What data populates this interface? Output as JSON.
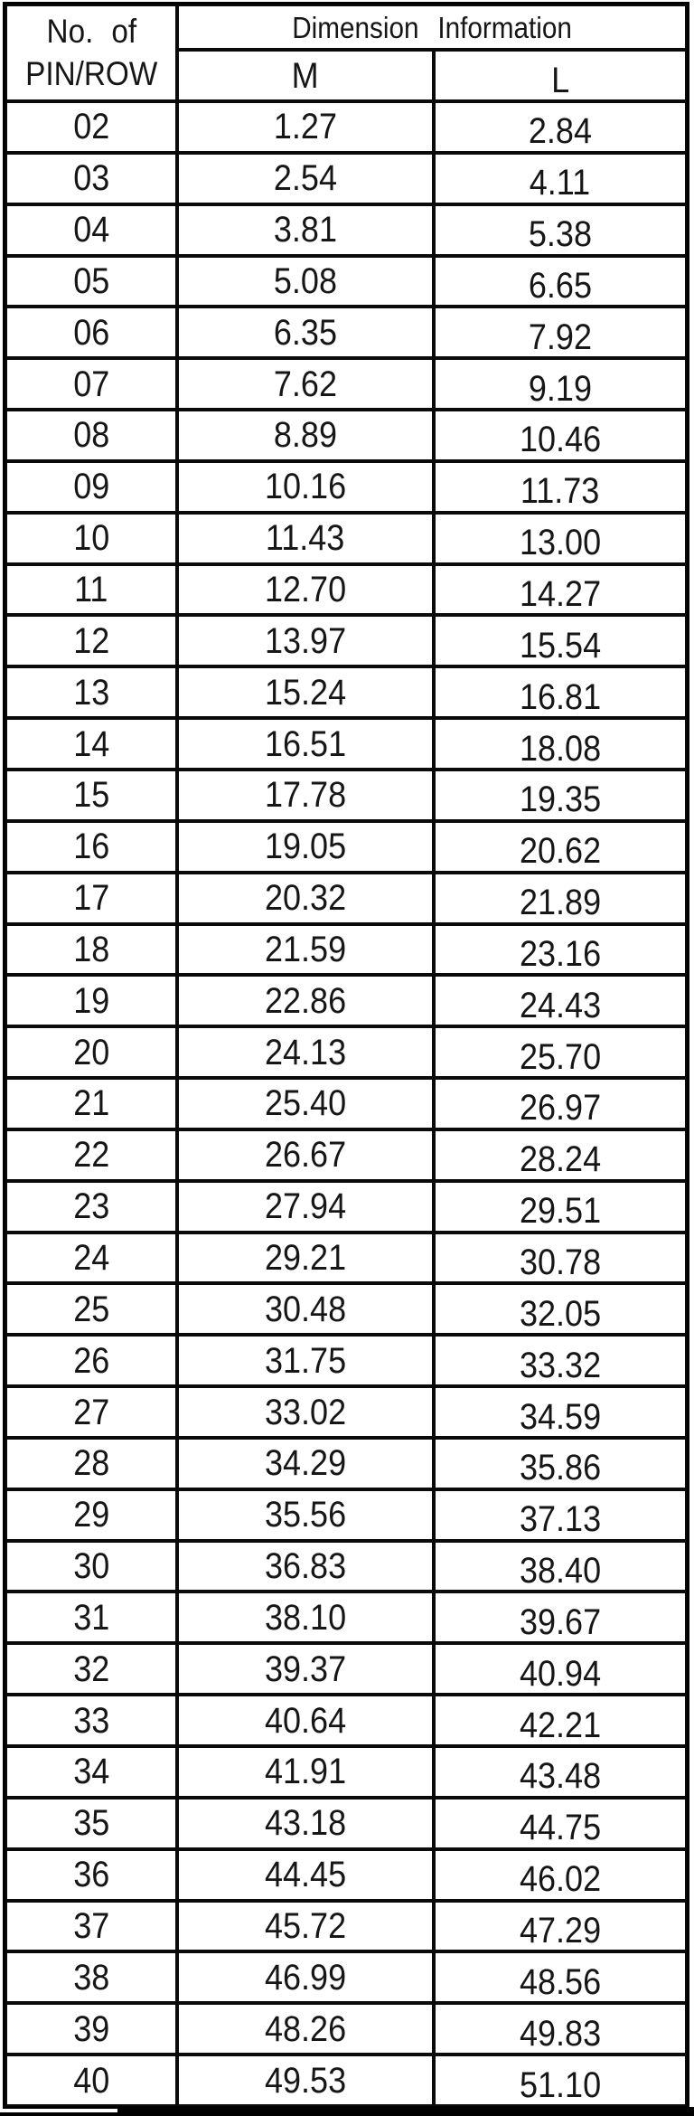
{
  "table": {
    "header": {
      "col1_line1": "No. of",
      "col1_line2": "PIN/ROW",
      "span_title": "Dimension Information",
      "col_m": "M",
      "col_l": "L"
    },
    "rows": [
      {
        "pins": "02",
        "m": "1.27",
        "l": "2.84"
      },
      {
        "pins": "03",
        "m": "2.54",
        "l": "4.11"
      },
      {
        "pins": "04",
        "m": "3.81",
        "l": "5.38"
      },
      {
        "pins": "05",
        "m": "5.08",
        "l": "6.65"
      },
      {
        "pins": "06",
        "m": "6.35",
        "l": "7.92"
      },
      {
        "pins": "07",
        "m": "7.62",
        "l": "9.19"
      },
      {
        "pins": "08",
        "m": "8.89",
        "l": "10.46"
      },
      {
        "pins": "09",
        "m": "10.16",
        "l": "11.73"
      },
      {
        "pins": "10",
        "m": "11.43",
        "l": "13.00"
      },
      {
        "pins": "11",
        "m": "12.70",
        "l": "14.27"
      },
      {
        "pins": "12",
        "m": "13.97",
        "l": "15.54"
      },
      {
        "pins": "13",
        "m": "15.24",
        "l": "16.81"
      },
      {
        "pins": "14",
        "m": "16.51",
        "l": "18.08"
      },
      {
        "pins": "15",
        "m": "17.78",
        "l": "19.35"
      },
      {
        "pins": "16",
        "m": "19.05",
        "l": "20.62"
      },
      {
        "pins": "17",
        "m": "20.32",
        "l": "21.89"
      },
      {
        "pins": "18",
        "m": "21.59",
        "l": "23.16"
      },
      {
        "pins": "19",
        "m": "22.86",
        "l": "24.43"
      },
      {
        "pins": "20",
        "m": "24.13",
        "l": "25.70"
      },
      {
        "pins": "21",
        "m": "25.40",
        "l": "26.97"
      },
      {
        "pins": "22",
        "m": "26.67",
        "l": "28.24"
      },
      {
        "pins": "23",
        "m": "27.94",
        "l": "29.51"
      },
      {
        "pins": "24",
        "m": "29.21",
        "l": "30.78"
      },
      {
        "pins": "25",
        "m": "30.48",
        "l": "32.05"
      },
      {
        "pins": "26",
        "m": "31.75",
        "l": "33.32"
      },
      {
        "pins": "27",
        "m": "33.02",
        "l": "34.59"
      },
      {
        "pins": "28",
        "m": "34.29",
        "l": "35.86"
      },
      {
        "pins": "29",
        "m": "35.56",
        "l": "37.13"
      },
      {
        "pins": "30",
        "m": "36.83",
        "l": "38.40"
      },
      {
        "pins": "31",
        "m": "38.10",
        "l": "39.67"
      },
      {
        "pins": "32",
        "m": "39.37",
        "l": "40.94"
      },
      {
        "pins": "33",
        "m": "40.64",
        "l": "42.21"
      },
      {
        "pins": "34",
        "m": "41.91",
        "l": "43.48"
      },
      {
        "pins": "35",
        "m": "43.18",
        "l": "44.75"
      },
      {
        "pins": "36",
        "m": "44.45",
        "l": "46.02"
      },
      {
        "pins": "37",
        "m": "45.72",
        "l": "47.29"
      },
      {
        "pins": "38",
        "m": "46.99",
        "l": "48.56"
      },
      {
        "pins": "39",
        "m": "48.26",
        "l": "49.83"
      },
      {
        "pins": "40",
        "m": "49.53",
        "l": "51.10"
      }
    ]
  }
}
